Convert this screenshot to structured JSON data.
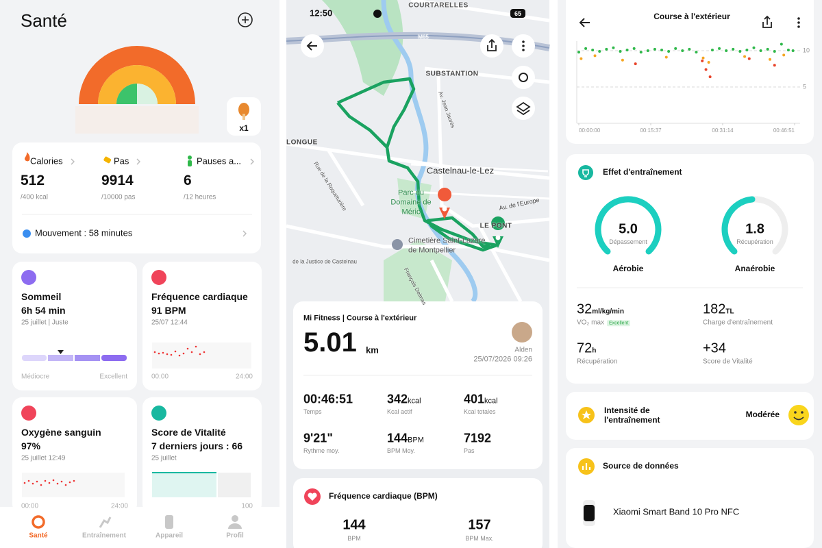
{
  "health": {
    "title": "Santé",
    "badge": "x1",
    "stats": [
      {
        "label": "Calories",
        "value": "512",
        "target": "/400 kcal"
      },
      {
        "label": "Pas",
        "value": "9914",
        "target": "/10000 pas"
      },
      {
        "label": "Pauses a...",
        "value": "6",
        "target": "/12 heures"
      }
    ],
    "movement": "Mouvement : 58 minutes",
    "sleep": {
      "title": "Sommeil",
      "value": "6h 54 min",
      "date": "25 juillet | Juste",
      "low": "Médiocre",
      "high": "Excellent"
    },
    "heart": {
      "title": "Fréquence cardiaque",
      "value": "91 BPM",
      "date": "25/07 12:44",
      "start": "00:00",
      "end": "24:00"
    },
    "oxygen": {
      "title": "Oxygène sanguin",
      "value": "97%",
      "date": "25 juillet 12:49",
      "start": "00:00",
      "end": "24:00"
    },
    "vitality": {
      "title": "Score de Vitalité",
      "value": "7 derniers jours : 66",
      "date": "25 juillet",
      "end": "100"
    },
    "nav": [
      "Santé",
      "Entraînement",
      "Appareil",
      "Profil"
    ]
  },
  "workout": {
    "status_time": "12:50",
    "battery": "65",
    "map_labels": [
      "COURTARELLES",
      "M65",
      "SUBSTANTION",
      "LONGUE",
      "Castelnau-le-Lez",
      "Parc du",
      "Domaine de",
      "Méric",
      "Av. de l'Europe",
      "LE PONT",
      "Cimetière Saint-Lazare",
      "de Montpellier",
      "Rue de la Roqueturière",
      "Av. Jean Jaurès",
      "de la Justice de Castelnau",
      "François Delmas"
    ],
    "activity": "Mi Fitness | Course à l'extérieur",
    "distance": "5.01",
    "distance_unit": "km",
    "user": "Alden",
    "date": "25/07/2026 09:26",
    "metrics": [
      {
        "value": "00:46:51",
        "label": "Temps"
      },
      {
        "value": "342",
        "unit": "kcal",
        "label": "Kcal actif"
      },
      {
        "value": "401",
        "unit": "kcal",
        "label": "Kcal totales"
      },
      {
        "value": "9'21\"",
        "label": "Rythme moy."
      },
      {
        "value": "144",
        "unit": "BPM",
        "label": "BPM Moy."
      },
      {
        "value": "7192",
        "label": "Pas"
      }
    ],
    "heart_title": "Fréquence cardiaque (BPM)",
    "heart": [
      {
        "value": "144",
        "label": "BPM"
      },
      {
        "value": "157",
        "label": "BPM Max."
      }
    ]
  },
  "details": {
    "title": "Course à l'extérieur",
    "pace_chart": {
      "type": "scatter",
      "xlim": [
        0,
        46.85
      ],
      "ylim": [
        0,
        11
      ],
      "xticks": [
        {
          "value": 0,
          "label": "00:00:00"
        },
        {
          "value": 15.62,
          "label": "00:15:37"
        },
        {
          "value": 31.23,
          "label": "00:31:14"
        },
        {
          "value": 46.85,
          "label": "00:46:51"
        }
      ],
      "yticks": [
        5,
        10
      ],
      "series": [
        {
          "color": "#2fb84a",
          "x": [
            0,
            1.5,
            3,
            4.5,
            6,
            7.5,
            9,
            10.5,
            12,
            13.5,
            15,
            16.5,
            18,
            19.5,
            21,
            22.5,
            24,
            25.5,
            29,
            30.5,
            32,
            33.5,
            35,
            36.5,
            38,
            39.5,
            41,
            42.5,
            44,
            45.5,
            46.5
          ],
          "values": [
            9.8,
            10.3,
            10.1,
            9.9,
            10.2,
            10.4,
            9.9,
            10.1,
            10.3,
            9.8,
            10.0,
            10.2,
            10.1,
            9.9,
            10.3,
            10.0,
            10.2,
            9.8,
            10.1,
            10.3,
            10.0,
            10.2,
            9.9,
            10.1,
            10.4,
            10.0,
            10.2,
            9.9,
            10.9,
            10.1,
            10.0
          ]
        },
        {
          "color": "#f5a623",
          "x": [
            0.5,
            3.5,
            9.5,
            19,
            27,
            28.2,
            36,
            41.5,
            44.5
          ],
          "values": [
            8.9,
            9.3,
            8.7,
            9.1,
            9.0,
            8.4,
            9.2,
            8.8,
            9.4
          ]
        },
        {
          "color": "#e8432a",
          "x": [
            12.3,
            26.8,
            27.6,
            28.5,
            37,
            42.5
          ],
          "values": [
            8.2,
            8.6,
            7.4,
            6.4,
            8.9,
            8.0
          ]
        }
      ]
    },
    "effect_title": "Effet d'entraînement",
    "gauges": [
      {
        "value": "5.0",
        "label": "Dépassement",
        "name": "Aérobie"
      },
      {
        "value": "1.8",
        "label": "Récupération",
        "name": "Anaérobie"
      }
    ],
    "stats": [
      {
        "value": "32",
        "unit": "ml/kg/min",
        "label": "VO₂ max",
        "badge": "Excellent"
      },
      {
        "value": "182",
        "unit": "TL",
        "label": "Charge d'entraînement"
      },
      {
        "value": "72",
        "unit": "h",
        "label": "Récupération"
      },
      {
        "value": "+34",
        "label": "Score de Vitalité"
      }
    ],
    "intensity_title": "Intensité de l'entraînement",
    "intensity": "Modérée",
    "source_title": "Source de données",
    "device": "Xiaomi Smart Band 10 Pro NFC"
  }
}
